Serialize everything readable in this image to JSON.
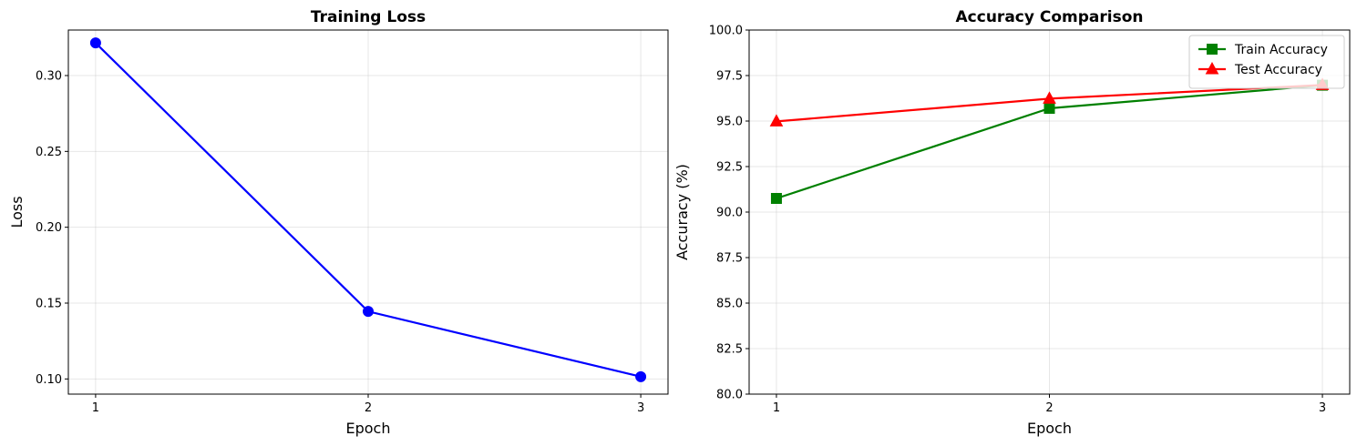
{
  "chart_data": [
    {
      "type": "line",
      "title": "Training Loss",
      "xlabel": "Epoch",
      "ylabel": "Loss",
      "x": [
        1,
        2,
        3
      ],
      "xticks": [
        "1",
        "2",
        "3"
      ],
      "ylim": [
        0.09,
        0.33
      ],
      "yticks": [
        "0.10",
        "0.15",
        "0.20",
        "0.25",
        "0.30"
      ],
      "grid": true,
      "series": [
        {
          "values": [
            0.3215,
            0.1445,
            0.1015
          ],
          "color": "#0000ff",
          "marker": "circle"
        }
      ]
    },
    {
      "type": "line",
      "title": "Accuracy Comparison",
      "xlabel": "Epoch",
      "ylabel": "Accuracy (%)",
      "x": [
        1,
        2,
        3
      ],
      "xticks": [
        "1",
        "2",
        "3"
      ],
      "ylim": [
        80,
        100
      ],
      "yticks": [
        "80.0",
        "82.5",
        "85.0",
        "87.5",
        "90.0",
        "92.5",
        "95.0",
        "97.5",
        "100.0"
      ],
      "grid": true,
      "legend": "top-right",
      "series": [
        {
          "name": "Train Accuracy",
          "values": [
            90.75,
            95.7,
            96.97
          ],
          "color": "#008000",
          "marker": "square"
        },
        {
          "name": "Test Accuracy",
          "values": [
            94.98,
            96.23,
            96.98
          ],
          "color": "#ff0000",
          "marker": "triangle"
        }
      ]
    }
  ]
}
